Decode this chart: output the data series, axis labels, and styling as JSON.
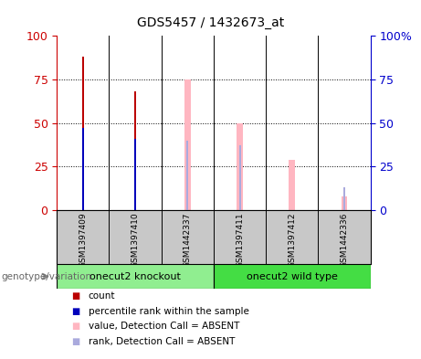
{
  "title": "GDS5457 / 1432673_at",
  "samples": [
    "GSM1397409",
    "GSM1397410",
    "GSM1442337",
    "GSM1397411",
    "GSM1397412",
    "GSM1442336"
  ],
  "groups": [
    "onecut2 knockout",
    "onecut2 knockout",
    "onecut2 knockout",
    "onecut2 wild type",
    "onecut2 wild type",
    "onecut2 wild type"
  ],
  "bar_data": {
    "count_present": [
      88,
      68,
      null,
      null,
      null,
      null
    ],
    "rank_present": [
      47,
      41,
      null,
      null,
      null,
      null
    ],
    "value_absent": [
      null,
      null,
      75,
      50,
      29,
      8
    ],
    "rank_absent": [
      null,
      null,
      40,
      37,
      null,
      13
    ]
  },
  "colors": {
    "count": "#BB0000",
    "rank_present": "#0000BB",
    "value_absent": "#FFB6C1",
    "rank_absent": "#AAAADD"
  },
  "ylim": [
    0,
    100
  ],
  "yticks": [
    0,
    25,
    50,
    75,
    100
  ],
  "left_axis_color": "#CC0000",
  "right_axis_color": "#0000CC",
  "legend_items": [
    {
      "label": "count",
      "color": "#BB0000"
    },
    {
      "label": "percentile rank within the sample",
      "color": "#0000BB"
    },
    {
      "label": "value, Detection Call = ABSENT",
      "color": "#FFB6C1"
    },
    {
      "label": "rank, Detection Call = ABSENT",
      "color": "#AAAADD"
    }
  ],
  "genotype_label": "genotype/variation",
  "background_color": "#FFFFFF",
  "group_colors": {
    "onecut2 knockout": "#90EE90",
    "onecut2 wild type": "#44DD44"
  }
}
